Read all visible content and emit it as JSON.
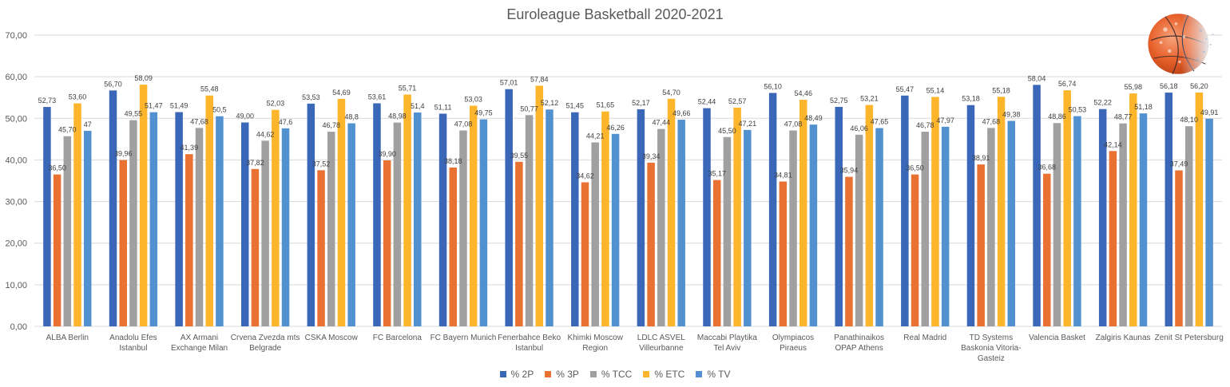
{
  "chart_data": {
    "type": "bar",
    "title": "Euroleague Basketball 2020-2021",
    "xlabel": "",
    "ylabel": "",
    "ylim": [
      0,
      70
    ],
    "yticks": [
      "0,00",
      "10,00",
      "20,00",
      "30,00",
      "40,00",
      "50,00",
      "60,00",
      "70,00"
    ],
    "ytick_values": [
      0,
      10,
      20,
      30,
      40,
      50,
      60,
      70
    ],
    "grid": true,
    "legend_position": "bottom",
    "categories": [
      "ALBA Berlin",
      "Anadolu Efes Istanbul",
      "AX Armani Exchange Milan",
      "Crvena Zvezda mts Belgrade",
      "CSKA Moscow",
      "FC Barcelona",
      "FC Bayern Munich",
      "Fenerbahce Beko Istanbul",
      "Khimki Moscow Region",
      "LDLC ASVEL Villeurbanne",
      "Maccabi Playtika Tel Aviv",
      "Olympiacos Piraeus",
      "Panathinaikos OPAP Athens",
      "Real Madrid",
      "TD Systems Baskonia Vitoria-Gasteiz",
      "Valencia Basket",
      "Zalgiris Kaunas",
      "Zenit St Petersburg"
    ],
    "category_lines": [
      [
        "ALBA Berlin"
      ],
      [
        "Anadolu Efes",
        "Istanbul"
      ],
      [
        "AX Armani",
        "Exchange Milan"
      ],
      [
        "Crvena Zvezda mts",
        "Belgrade"
      ],
      [
        "CSKA Moscow"
      ],
      [
        "FC Barcelona"
      ],
      [
        "FC Bayern Munich"
      ],
      [
        "Fenerbahce Beko",
        "Istanbul"
      ],
      [
        "Khimki Moscow",
        "Region"
      ],
      [
        "LDLC ASVEL",
        "Villeurbanne"
      ],
      [
        "Maccabi Playtika",
        "Tel Aviv"
      ],
      [
        "Olympiacos",
        "Piraeus"
      ],
      [
        "Panathinaikos",
        "OPAP Athens"
      ],
      [
        "Real Madrid"
      ],
      [
        "TD Systems",
        "Baskonia Vitoria-",
        "Gasteiz"
      ],
      [
        "Valencia Basket"
      ],
      [
        "Zalgiris Kaunas"
      ],
      [
        "Zenit St Petersburg"
      ]
    ],
    "series": [
      {
        "name": "% 2P",
        "color": "#3A67B8",
        "values": [
          52.73,
          56.7,
          51.49,
          49.0,
          53.53,
          53.61,
          51.11,
          57.01,
          51.45,
          52.17,
          52.44,
          56.1,
          52.75,
          55.47,
          53.18,
          58.04,
          52.22,
          56.18
        ],
        "labels": [
          "52,73",
          "56,70",
          "51,49",
          "49,00",
          "53,53",
          "53,61",
          "51,11",
          "57,01",
          "51,45",
          "52,17",
          "52,44",
          "56,10",
          "52,75",
          "55,47",
          "53,18",
          "58,04",
          "52,22",
          "56,18"
        ]
      },
      {
        "name": "% 3P",
        "color": "#E97132",
        "values": [
          36.5,
          39.96,
          41.39,
          37.82,
          37.52,
          39.9,
          38.18,
          39.55,
          34.62,
          39.34,
          35.17,
          34.81,
          35.94,
          36.5,
          38.91,
          36.68,
          42.14,
          37.49
        ],
        "labels": [
          "36,50",
          "39,96",
          "41,39",
          "37,82",
          "37,52",
          "39,90",
          "38,18",
          "39,55",
          "34,62",
          "39,34",
          "35,17",
          "34,81",
          "35,94",
          "36,50",
          "38,91",
          "36,68",
          "42,14",
          "37,49"
        ]
      },
      {
        "name": "% TCC",
        "color": "#A0A0A0",
        "values": [
          45.7,
          49.55,
          47.68,
          44.62,
          46.78,
          48.98,
          47.08,
          50.77,
          44.21,
          47.44,
          45.5,
          47.08,
          46.06,
          46.78,
          47.68,
          48.86,
          48.77,
          48.1
        ],
        "labels": [
          "45,70",
          "49,55",
          "47,68",
          "44,62",
          "46,78",
          "48,98",
          "47,08",
          "50,77",
          "44,21",
          "47,44",
          "45,50",
          "47,08",
          "46,06",
          "46,78",
          "47,68",
          "48,86",
          "48,77",
          "48,10"
        ]
      },
      {
        "name": "% ETC",
        "color": "#FDB52B",
        "values": [
          53.6,
          58.09,
          55.48,
          52.03,
          54.69,
          55.71,
          53.03,
          57.84,
          51.65,
          54.7,
          52.57,
          54.46,
          53.21,
          55.14,
          55.18,
          56.74,
          55.98,
          56.2
        ],
        "labels": [
          "53,60",
          "58,09",
          "55,48",
          "52,03",
          "54,69",
          "55,71",
          "53,03",
          "57,84",
          "51,65",
          "54,70",
          "52,57",
          "54,46",
          "53,21",
          "55,14",
          "55,18",
          "56,74",
          "55,98",
          "56,20"
        ]
      },
      {
        "name": "% TV",
        "color": "#5291CF",
        "values": [
          47,
          51.47,
          50.5,
          47.6,
          48.8,
          51.4,
          49.75,
          52.12,
          46.26,
          49.66,
          47.21,
          48.49,
          47.65,
          47.97,
          49.38,
          50.53,
          51.18,
          49.91
        ],
        "labels": [
          "47",
          "51,47",
          "50,5",
          "47,6",
          "48,8",
          "51,4",
          "49,75",
          "52,12",
          "46,26",
          "49,66",
          "47,21",
          "48,49",
          "47,65",
          "47,97",
          "49,38",
          "50,53",
          "51,18",
          "49,91"
        ]
      }
    ]
  },
  "decoration": {
    "image": "basketball-icon"
  }
}
